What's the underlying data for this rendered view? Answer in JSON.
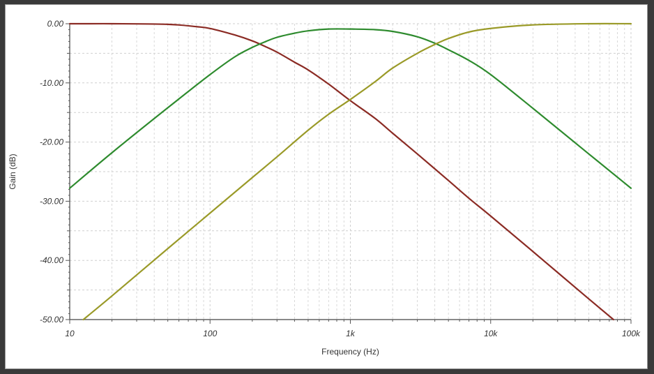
{
  "chart_data": {
    "type": "line",
    "title": "",
    "xlabel": "Frequency (Hz)",
    "ylabel": "Gain (dB)",
    "x_scale": "log",
    "xlim": [
      10,
      100000
    ],
    "ylim": [
      -50,
      0
    ],
    "x_ticks": [
      {
        "value": 10,
        "label": "10"
      },
      {
        "value": 100,
        "label": "100"
      },
      {
        "value": 1000,
        "label": "1k"
      },
      {
        "value": 10000,
        "label": "10k"
      },
      {
        "value": 100000,
        "label": "100k"
      }
    ],
    "y_ticks": [
      {
        "value": 0,
        "label": "0.00"
      },
      {
        "value": -10,
        "label": "-10.00"
      },
      {
        "value": -20,
        "label": "-20.00"
      },
      {
        "value": -30,
        "label": "-30.00"
      },
      {
        "value": -40,
        "label": "-40.00"
      },
      {
        "value": -50,
        "label": "-50.00"
      }
    ],
    "grid": true,
    "legend": "none",
    "series": [
      {
        "color": "#8b2b24",
        "x": [
          10,
          20,
          50,
          80,
          100,
          150,
          200,
          250,
          300,
          400,
          500,
          700,
          1000,
          1500,
          2000,
          3000,
          5000,
          7000,
          10000,
          20000,
          50000,
          75000
        ],
        "y": [
          0,
          0,
          -0.1,
          -0.5,
          -0.8,
          -1.9,
          -2.9,
          -3.9,
          -4.8,
          -6.5,
          -7.8,
          -10.2,
          -13,
          -16,
          -18.5,
          -22,
          -26.5,
          -29.5,
          -32.5,
          -38.5,
          -46.5,
          -50
        ]
      },
      {
        "color": "#2e8b2e",
        "x": [
          10,
          20,
          50,
          100,
          150,
          200,
          250,
          300,
          400,
          500,
          700,
          1000,
          1500,
          2000,
          3000,
          4000,
          5000,
          7000,
          10000,
          20000,
          50000,
          100000
        ],
        "y": [
          -27.8,
          -21.8,
          -14.2,
          -8.6,
          -5.6,
          -4,
          -3,
          -2.3,
          -1.6,
          -1.2,
          -0.9,
          -0.9,
          -1,
          -1.3,
          -2.2,
          -3.3,
          -4.4,
          -6.2,
          -8.6,
          -14.3,
          -22,
          -27.8
        ]
      },
      {
        "color": "#9a9a28",
        "x": [
          12.5,
          20,
          50,
          100,
          200,
          300,
          500,
          700,
          1000,
          1500,
          2000,
          3000,
          4000,
          5000,
          7000,
          10000,
          20000,
          50000,
          100000
        ],
        "y": [
          -50,
          -46,
          -38,
          -32,
          -26,
          -22.5,
          -18,
          -15.3,
          -12.8,
          -9.8,
          -7.5,
          -5,
          -3.5,
          -2.5,
          -1.4,
          -0.8,
          -0.2,
          0,
          0
        ]
      }
    ]
  }
}
